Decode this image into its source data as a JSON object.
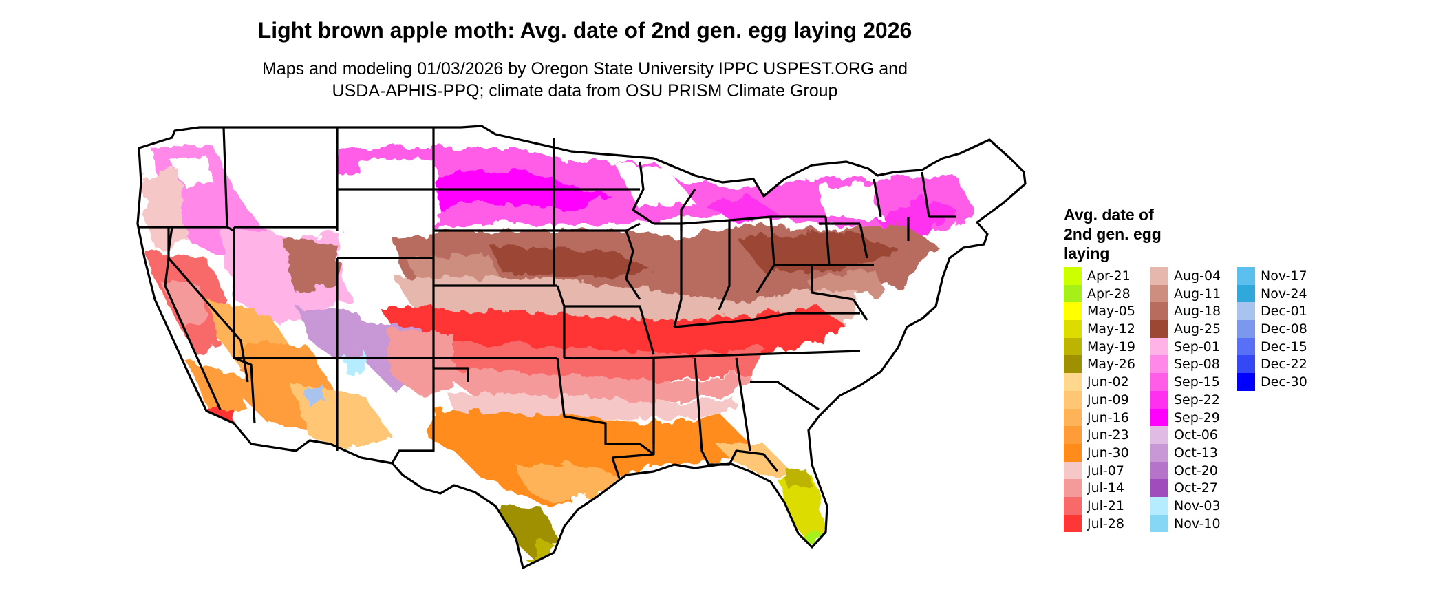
{
  "title": "Light brown apple moth: Avg. date of 2nd gen. egg laying 2026",
  "subtitle_line1": "Maps and modeling 01/03/2026 by Oregon State University IPPC USPEST.ORG and",
  "subtitle_line2": "USDA-APHIS-PPQ; climate data from OSU PRISM Climate Group",
  "legend": {
    "title_lines": [
      "Avg. date of",
      "2nd gen. egg",
      "laying"
    ],
    "columns": [
      [
        {
          "label": "Apr-21",
          "color": "#ccff00"
        },
        {
          "label": "Apr-28",
          "color": "#a6f01a"
        },
        {
          "label": "May-05",
          "color": "#ffff00"
        },
        {
          "label": "May-12",
          "color": "#dcdc00"
        },
        {
          "label": "May-19",
          "color": "#bcb400"
        },
        {
          "label": "May-26",
          "color": "#9e9000"
        },
        {
          "label": "Jun-02",
          "color": "#ffd88e"
        },
        {
          "label": "Jun-09",
          "color": "#ffc774"
        },
        {
          "label": "Jun-16",
          "color": "#ffb359"
        },
        {
          "label": "Jun-23",
          "color": "#ff9c3a"
        },
        {
          "label": "Jun-30",
          "color": "#ff8c1a"
        },
        {
          "label": "Jul-07",
          "color": "#f6c7c7"
        },
        {
          "label": "Jul-14",
          "color": "#f59a9a"
        },
        {
          "label": "Jul-21",
          "color": "#f86a6a"
        },
        {
          "label": "Jul-28",
          "color": "#ff3636"
        }
      ],
      [
        {
          "label": "Aug-04",
          "color": "#e6b8ad"
        },
        {
          "label": "Aug-11",
          "color": "#cd8e80"
        },
        {
          "label": "Aug-18",
          "color": "#b86c5e"
        },
        {
          "label": "Aug-25",
          "color": "#9c4634"
        },
        {
          "label": "Sep-01",
          "color": "#ffb3e6"
        },
        {
          "label": "Sep-08",
          "color": "#ff88e8"
        },
        {
          "label": "Sep-15",
          "color": "#ff5ce8"
        },
        {
          "label": "Sep-22",
          "color": "#ff30f0"
        },
        {
          "label": "Sep-29",
          "color": "#ff00ff"
        },
        {
          "label": "Oct-06",
          "color": "#e0bce4"
        },
        {
          "label": "Oct-13",
          "color": "#c897d6"
        },
        {
          "label": "Oct-20",
          "color": "#b574ca"
        },
        {
          "label": "Oct-27",
          "color": "#a04cbc"
        },
        {
          "label": "Nov-03",
          "color": "#b6ecff"
        },
        {
          "label": "Nov-10",
          "color": "#86d6f6"
        }
      ],
      [
        {
          "label": "Nov-17",
          "color": "#5cc0ee"
        },
        {
          "label": "Nov-24",
          "color": "#30a8dc"
        },
        {
          "label": "Dec-01",
          "color": "#a8c4ee"
        },
        {
          "label": "Dec-08",
          "color": "#7c98ee"
        },
        {
          "label": "Dec-15",
          "color": "#5870f6"
        },
        {
          "label": "Dec-22",
          "color": "#3448f6"
        },
        {
          "label": "Dec-30",
          "color": "#0000ff"
        }
      ]
    ]
  }
}
